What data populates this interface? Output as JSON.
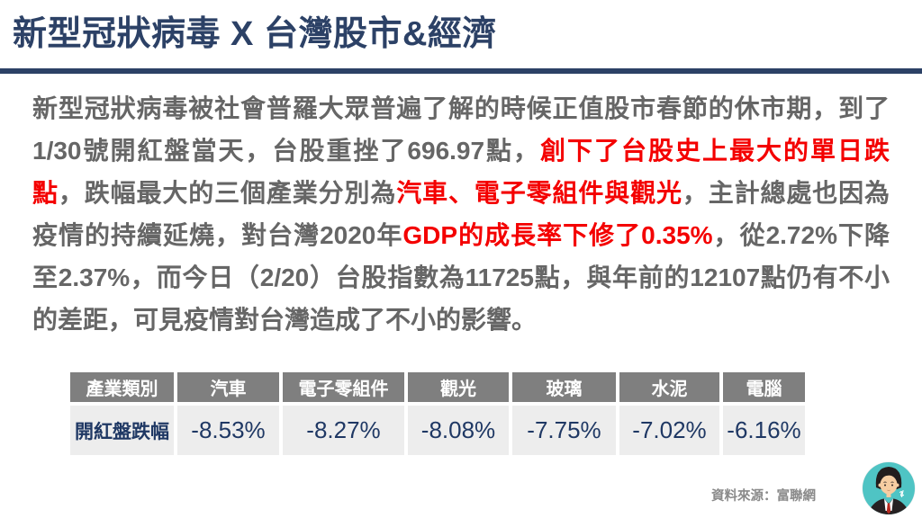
{
  "title": "新型冠狀病毒 X 台灣股市&經濟",
  "colors": {
    "navy": "#2C4166",
    "body_gray": "#666666",
    "red": "#F40000",
    "table_header_bg": "#7F7F7F",
    "table_row_bg": "#EDEDED",
    "table_value_navy": "#1F3864",
    "source_gray": "#8A8A8A",
    "avatar_teal": "#4FC4C4"
  },
  "paragraph": {
    "segments": [
      {
        "text": "新型冠狀病毒被社會普羅大眾普遍了解的時候正值股市春節的休市期，到了1/30號開紅盤當天，台股重挫了696.97點，",
        "emphasis": false
      },
      {
        "text": "創下了台股史上最大的單日跌點",
        "emphasis": true
      },
      {
        "text": "，跌幅最大的三個產業分別為",
        "emphasis": false
      },
      {
        "text": "汽車、電子零組件與觀光",
        "emphasis": true
      },
      {
        "text": "，主計總處也因為疫情的持續延燒，對台灣2020年",
        "emphasis": false
      },
      {
        "text": "GDP的成長率下修了0.35%",
        "emphasis": true
      },
      {
        "text": "，從2.72%下降至2.37%，而今日（2/20）台股指數為11725點，與年前的12107點仍有不小的差距，可見疫情對台灣造成了不小的影響。",
        "emphasis": false
      }
    ]
  },
  "table": {
    "headers": [
      "產業類別",
      "汽車",
      "電子零組件",
      "觀光",
      "玻璃",
      "水泥",
      "電腦"
    ],
    "row_label": "開紅盤跌幅",
    "values": [
      "-8.53%",
      "-8.27%",
      "-8.08%",
      "-7.75%",
      "-7.02%",
      "-6.16%"
    ]
  },
  "source_note": "資料來源：富聯網",
  "icons": {
    "avatar": "person-avatar-icon"
  }
}
